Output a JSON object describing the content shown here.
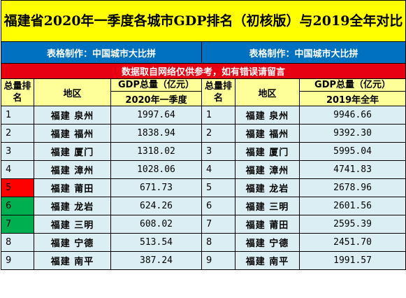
{
  "title": "福建省2020年一季度各城市GDP排名（初核版）与2019全年对比",
  "maker_left": "表格制作：中国城市大比拼",
  "maker_right": "表格制作：中国城市大比拼",
  "note": "数据取自网络仅供参考，如有错误请留言",
  "headers": {
    "rank": "总量排名",
    "region": "地区",
    "gdp_left": "GDP总量（亿元）",
    "gdp_right": "GDP总量（亿元）",
    "period_left": "2020年一季度",
    "period_right": "2019年全年"
  },
  "highlight_colors": {
    "red": "#ff0000",
    "green": "#00b050"
  },
  "rows": [
    {
      "rank": "1",
      "city_a": "福建 泉州",
      "gdp_a": "1997.64",
      "rank_b": "1",
      "city_b": "福建 泉州",
      "gdp_b": "9946.66"
    },
    {
      "rank": "2",
      "city_a": "福建 福州",
      "gdp_a": "1838.94",
      "rank_b": "2",
      "city_b": "福建 福州",
      "gdp_b": "9392.30"
    },
    {
      "rank": "3",
      "city_a": "福建 厦门",
      "gdp_a": "1318.02",
      "rank_b": "3",
      "city_b": "福建 厦门",
      "gdp_b": "5995.04"
    },
    {
      "rank": "4",
      "city_a": "福建 漳州",
      "gdp_a": "1028.06",
      "rank_b": "4",
      "city_b": "福建 漳州",
      "gdp_b": "4741.83"
    },
    {
      "rank": "5",
      "city_a": "福建 莆田",
      "gdp_a": "671.73",
      "rank_b": "5",
      "city_b": "福建 龙岩",
      "gdp_b": "2678.96"
    },
    {
      "rank": "6",
      "city_a": "福建 龙岩",
      "gdp_a": "624.26",
      "rank_b": "6",
      "city_b": "福建 三明",
      "gdp_b": "2601.56"
    },
    {
      "rank": "7",
      "city_a": "福建 三明",
      "gdp_a": "608.02",
      "rank_b": "7",
      "city_b": "福建 莆田",
      "gdp_b": "2595.39"
    },
    {
      "rank": "8",
      "city_a": "福建 宁德",
      "gdp_a": "513.54",
      "rank_b": "8",
      "city_b": "福建 宁德",
      "gdp_b": "2451.70"
    },
    {
      "rank": "9",
      "city_a": "福建 南平",
      "gdp_a": "387.24",
      "rank_b": "9",
      "city_b": "福建 南平",
      "gdp_b": "1991.57"
    }
  ]
}
